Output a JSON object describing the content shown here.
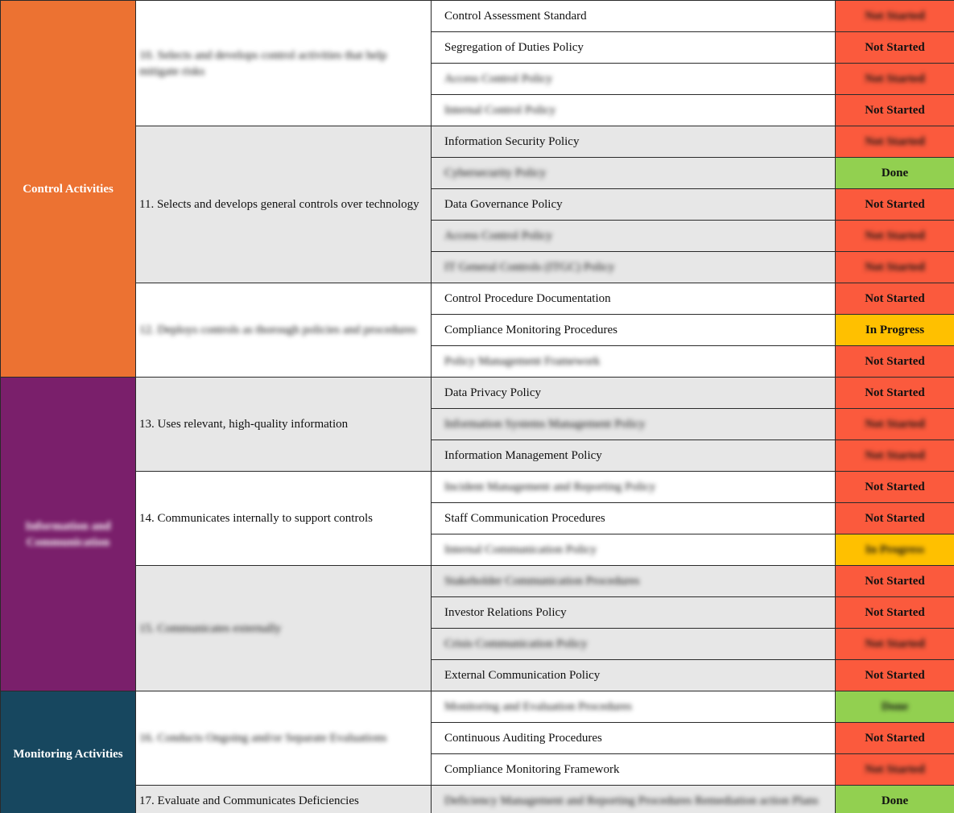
{
  "groups": [
    {
      "category": "Control Activities",
      "color": "#ec7232",
      "principles": [
        {
          "label": "10. Selects and develops control activities that help mitigate risks",
          "items": [
            {
              "policy": "Control Assessment Standard",
              "status": "Not Started",
              "status_color": "#fb5a3d"
            },
            {
              "policy": "Segregation of Duties Policy",
              "status": "Not Started",
              "status_color": "#fb5a3d"
            },
            {
              "policy": "Access Control Policy",
              "status": "Not Started",
              "status_color": "#fb5a3d"
            },
            {
              "policy": "Internal Control Policy",
              "status": "Not Started",
              "status_color": "#fb5a3d"
            }
          ]
        },
        {
          "label": "11. Selects and develops general controls over technology",
          "items": [
            {
              "policy": "Information Security Policy",
              "status": "Not Started",
              "status_color": "#fb5a3d"
            },
            {
              "policy": "Cybersecurity Policy",
              "status": "Done",
              "status_color": "#92d050"
            },
            {
              "policy": "Data Governance Policy",
              "status": "Not Started",
              "status_color": "#fb5a3d"
            },
            {
              "policy": "Access Control Policy",
              "status": "Not Started",
              "status_color": "#fb5a3d"
            },
            {
              "policy": "IT General Controls (ITGC) Policy",
              "status": "Not Started",
              "status_color": "#fb5a3d"
            }
          ]
        },
        {
          "label": "12. Deploys controls as thorough policies and procedures",
          "items": [
            {
              "policy": "Control Procedure Documentation",
              "status": "Not Started",
              "status_color": "#fb5a3d"
            },
            {
              "policy": "Compliance Monitoring Procedures",
              "status": "In Progress",
              "status_color": "#ffc000"
            },
            {
              "policy": "Policy Management Framework",
              "status": "Not Started",
              "status_color": "#fb5a3d"
            }
          ]
        }
      ]
    },
    {
      "category": "Information and Communication",
      "color": "#7a1f6b",
      "principles": [
        {
          "label": "13. Uses relevant, high-quality information",
          "items": [
            {
              "policy": "Data Privacy Policy",
              "status": "Not Started",
              "status_color": "#fb5a3d"
            },
            {
              "policy": "Information Systems Management Policy",
              "status": "Not Started",
              "status_color": "#fb5a3d"
            },
            {
              "policy": "Information Management Policy",
              "status": "Not Started",
              "status_color": "#fb5a3d"
            }
          ]
        },
        {
          "label": "14. Communicates internally to support controls",
          "items": [
            {
              "policy": "Incident Management and Reporting Policy",
              "status": "Not Started",
              "status_color": "#fb5a3d"
            },
            {
              "policy": "Staff Communication Procedures",
              "status": "Not Started",
              "status_color": "#fb5a3d"
            },
            {
              "policy": "Internal Communication Policy",
              "status": "In Progress",
              "status_color": "#ffc000"
            }
          ]
        },
        {
          "label": "15. Communicates externally",
          "items": [
            {
              "policy": "Stakeholder Communication Procedures",
              "status": "Not Started",
              "status_color": "#fb5a3d"
            },
            {
              "policy": "Investor Relations Policy",
              "status": "Not Started",
              "status_color": "#fb5a3d"
            },
            {
              "policy": "Crisis Communication Policy",
              "status": "Not Started",
              "status_color": "#fb5a3d"
            },
            {
              "policy": "External Communication Policy",
              "status": "Not Started",
              "status_color": "#fb5a3d"
            }
          ]
        }
      ]
    },
    {
      "category": "Monitoring Activities",
      "color": "#17475f",
      "principles": [
        {
          "label": "16. Conducts Ongoing and/or Separate Evaluations",
          "items": [
            {
              "policy": "Monitoring and Evaluation Procedures",
              "status": "Done",
              "status_color": "#92d050"
            },
            {
              "policy": "Continuous Auditing Procedures",
              "status": "Not Started",
              "status_color": "#fb5a3d"
            },
            {
              "policy": "Compliance Monitoring Framework",
              "status": "Not Started",
              "status_color": "#fb5a3d"
            }
          ]
        },
        {
          "label": "17. Evaluate and Communicates Deficiencies",
          "items": [
            {
              "policy": "Deficiency Management and Reporting Procedures Remediation action Plans",
              "status": "Done",
              "status_color": "#92d050"
            }
          ]
        }
      ]
    }
  ]
}
